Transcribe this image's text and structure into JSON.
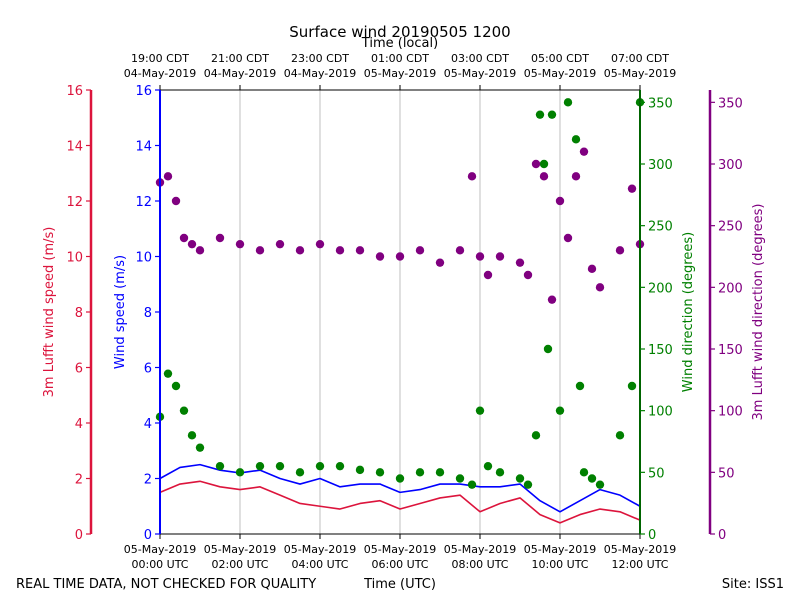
{
  "chart_data": {
    "type": "scatter",
    "title": "Surface wind 20190505 1200",
    "top_xlabel": "Time (local)",
    "xlabel": "Time (UTC)",
    "footer_left": "REAL TIME DATA, NOT CHECKED FOR QUALITY",
    "footer_right": "Site: ISS1",
    "x_range_hours": [
      0,
      12
    ],
    "bottom_ticks": [
      {
        "hour": 0,
        "line1": "05-May-2019",
        "line2": "00:00 UTC"
      },
      {
        "hour": 2,
        "line1": "05-May-2019",
        "line2": "02:00 UTC"
      },
      {
        "hour": 4,
        "line1": "05-May-2019",
        "line2": "04:00 UTC"
      },
      {
        "hour": 6,
        "line1": "05-May-2019",
        "line2": "06:00 UTC"
      },
      {
        "hour": 8,
        "line1": "05-May-2019",
        "line2": "08:00 UTC"
      },
      {
        "hour": 10,
        "line1": "05-May-2019",
        "line2": "10:00 UTC"
      },
      {
        "hour": 12,
        "line1": "05-May-2019",
        "line2": "12:00 UTC"
      }
    ],
    "top_ticks": [
      {
        "hour": 0,
        "line1": "19:00 CDT",
        "line2": "04-May-2019"
      },
      {
        "hour": 2,
        "line1": "21:00 CDT",
        "line2": "04-May-2019"
      },
      {
        "hour": 4,
        "line1": "23:00 CDT",
        "line2": "04-May-2019"
      },
      {
        "hour": 6,
        "line1": "01:00 CDT",
        "line2": "05-May-2019"
      },
      {
        "hour": 8,
        "line1": "03:00 CDT",
        "line2": "05-May-2019"
      },
      {
        "hour": 10,
        "line1": "05:00 CDT",
        "line2": "05-May-2019"
      },
      {
        "hour": 12,
        "line1": "07:00 CDT",
        "line2": "05-May-2019"
      }
    ],
    "axes": {
      "lufft_speed": {
        "label": "3m Lufft wind speed (m/s)",
        "color": "#dc143c",
        "ylim": [
          0,
          16
        ],
        "ticks": [
          0,
          2,
          4,
          6,
          8,
          10,
          12,
          14,
          16
        ]
      },
      "wind_speed": {
        "label": "Wind speed (m/s)",
        "color": "#0000ff",
        "ylim": [
          0,
          16
        ],
        "ticks": [
          0,
          2,
          4,
          6,
          8,
          10,
          12,
          14,
          16
        ]
      },
      "wind_direction": {
        "label": "Wind direction (degrees)",
        "color": "#008000",
        "ylim": [
          0,
          360
        ],
        "ticks": [
          0,
          50,
          100,
          150,
          200,
          250,
          300,
          350
        ]
      },
      "lufft_direction": {
        "label": "3m Lufft wind direction (degrees)",
        "color": "#800080",
        "ylim": [
          0,
          360
        ],
        "ticks": [
          0,
          50,
          100,
          150,
          200,
          250,
          300,
          350
        ]
      }
    },
    "series": [
      {
        "name": "Wind speed (m/s)",
        "style": "line",
        "color": "#0000ff",
        "axis": "wind_speed",
        "x": [
          0,
          0.5,
          1,
          1.5,
          2,
          2.5,
          3,
          3.5,
          4,
          4.5,
          5,
          5.5,
          6,
          6.5,
          7,
          7.5,
          8,
          8.5,
          9,
          9.5,
          10,
          10.5,
          11,
          11.5,
          12
        ],
        "y": [
          2.0,
          2.4,
          2.5,
          2.3,
          2.2,
          2.3,
          2.0,
          1.8,
          2.0,
          1.7,
          1.8,
          1.8,
          1.5,
          1.6,
          1.8,
          1.8,
          1.7,
          1.7,
          1.8,
          1.2,
          0.8,
          1.2,
          1.6,
          1.4,
          1.0
        ]
      },
      {
        "name": "3m Lufft wind speed (m/s)",
        "style": "line",
        "color": "#dc143c",
        "axis": "lufft_speed",
        "x": [
          0,
          0.5,
          1,
          1.5,
          2,
          2.5,
          3,
          3.5,
          4,
          4.5,
          5,
          5.5,
          6,
          6.5,
          7,
          7.5,
          8,
          8.5,
          9,
          9.5,
          10,
          10.5,
          11,
          11.5,
          12
        ],
        "y": [
          1.5,
          1.8,
          1.9,
          1.7,
          1.6,
          1.7,
          1.4,
          1.1,
          1.0,
          0.9,
          1.1,
          1.2,
          0.9,
          1.1,
          1.3,
          1.4,
          0.8,
          1.1,
          1.3,
          0.7,
          0.4,
          0.7,
          0.9,
          0.8,
          0.5
        ]
      },
      {
        "name": "Wind direction (degrees)",
        "style": "points",
        "color": "#008000",
        "axis": "wind_direction",
        "x": [
          0,
          0.2,
          0.4,
          0.6,
          0.8,
          1,
          1.5,
          2,
          2.5,
          3,
          3.5,
          4,
          4.5,
          5,
          5.5,
          6,
          6.5,
          7,
          7.5,
          7.8,
          8,
          8.2,
          8.5,
          9,
          9.2,
          9.4,
          9.5,
          9.6,
          9.7,
          9.8,
          10,
          10.2,
          10.4,
          10.5,
          10.6,
          10.8,
          11,
          11.5,
          11.8,
          12
        ],
        "y": [
          95,
          130,
          120,
          100,
          80,
          70,
          55,
          50,
          55,
          55,
          50,
          55,
          55,
          52,
          50,
          45,
          50,
          50,
          45,
          40,
          100,
          55,
          50,
          45,
          40,
          80,
          340,
          300,
          150,
          340,
          100,
          350,
          320,
          120,
          50,
          45,
          40,
          80,
          120,
          350
        ]
      },
      {
        "name": "3m Lufft wind direction (degrees)",
        "style": "points",
        "color": "#800080",
        "axis": "lufft_direction",
        "x": [
          0,
          0.2,
          0.4,
          0.6,
          0.8,
          1,
          1.5,
          2,
          2.5,
          3,
          3.5,
          4,
          4.5,
          5,
          5.5,
          6,
          6.5,
          7,
          7.5,
          7.8,
          8,
          8.2,
          8.5,
          9,
          9.2,
          9.4,
          9.6,
          9.8,
          10,
          10.2,
          10.4,
          10.6,
          10.8,
          11,
          11.5,
          11.8,
          12
        ],
        "y": [
          285,
          290,
          270,
          240,
          235,
          230,
          240,
          235,
          230,
          235,
          230,
          235,
          230,
          230,
          225,
          225,
          230,
          220,
          230,
          290,
          225,
          210,
          225,
          220,
          210,
          300,
          290,
          190,
          270,
          240,
          290,
          310,
          215,
          200,
          230,
          280,
          235
        ]
      }
    ]
  }
}
